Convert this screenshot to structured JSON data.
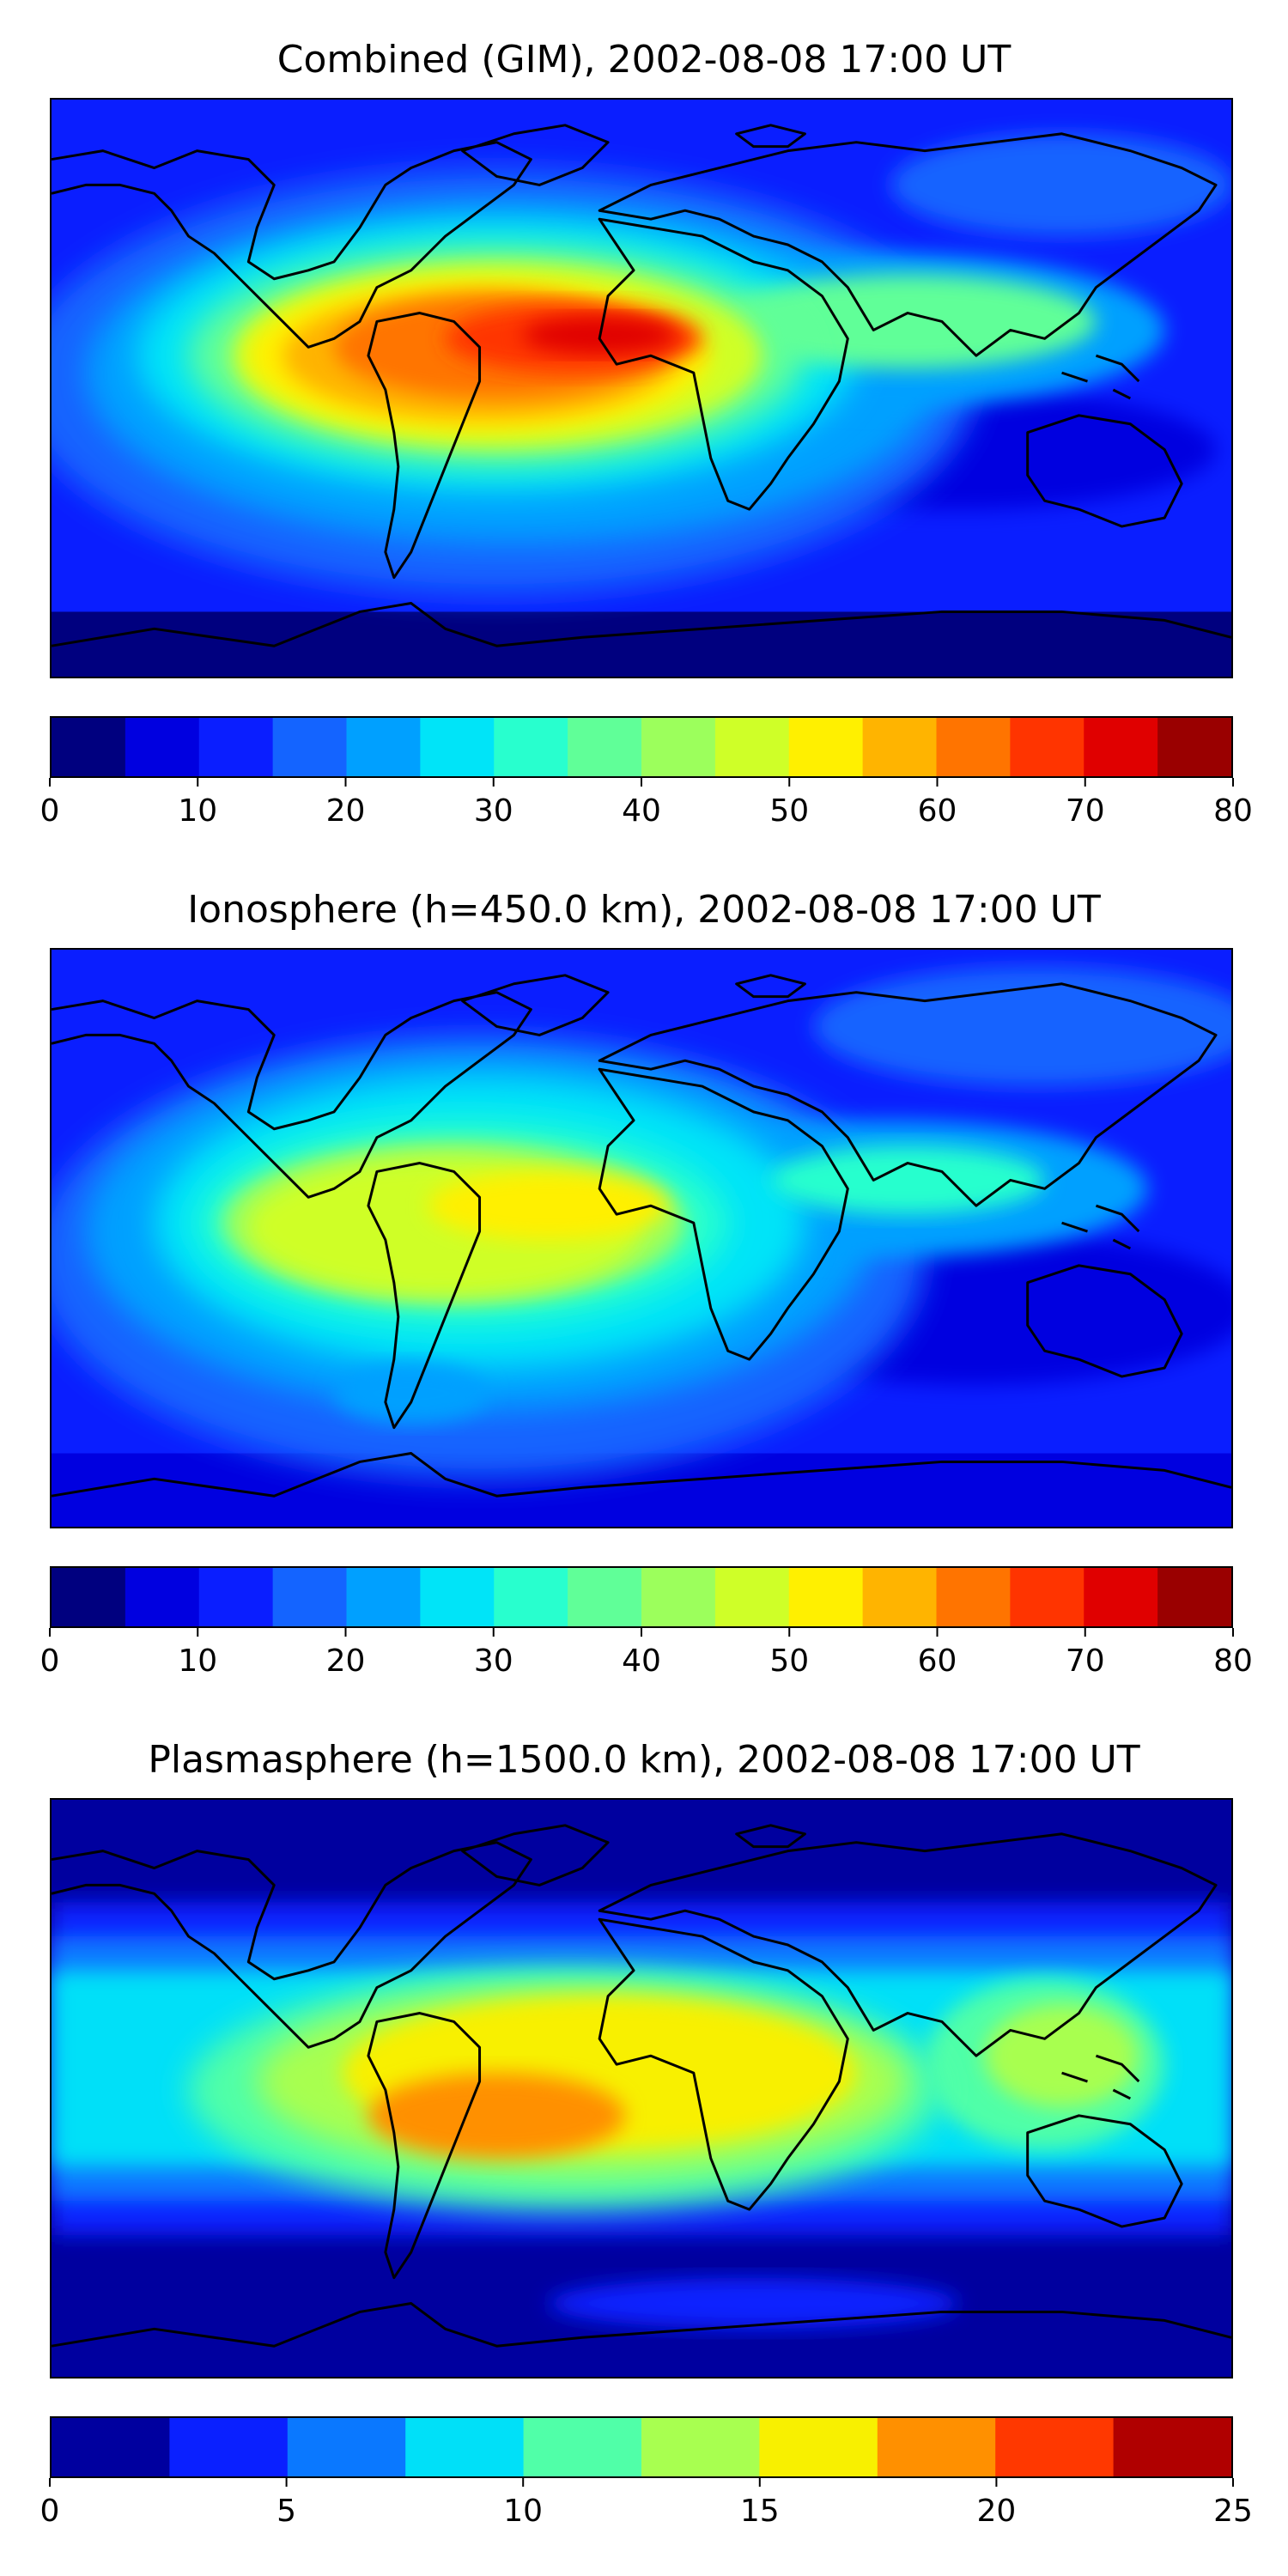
{
  "panels": [
    {
      "title": "Combined (GIM), 2002-08-08 17:00 UT",
      "colorbar": {
        "min": 0,
        "max": 80,
        "step": 5,
        "colors": [
          "#00007f",
          "#0000e0",
          "#0a1eff",
          "#1464ff",
          "#00a0ff",
          "#00e4f8",
          "#28ffce",
          "#60ff98",
          "#9cff5c",
          "#cfff28",
          "#fff000",
          "#ffb400",
          "#ff7400",
          "#ff3400",
          "#e00000",
          "#9a0000"
        ],
        "tick_labels": [
          "0",
          "10",
          "20",
          "30",
          "40",
          "50",
          "60",
          "70",
          "80"
        ]
      }
    },
    {
      "title": "Ionosphere  (h=450.0 km), 2002-08-08 17:00 UT",
      "colorbar": {
        "min": 0,
        "max": 80,
        "step": 5,
        "colors": [
          "#00007f",
          "#0000e0",
          "#0a1eff",
          "#1464ff",
          "#00a0ff",
          "#00e4f8",
          "#28ffce",
          "#60ff98",
          "#9cff5c",
          "#cfff28",
          "#fff000",
          "#ffb400",
          "#ff7400",
          "#ff3400",
          "#e00000",
          "#9a0000"
        ],
        "tick_labels": [
          "0",
          "10",
          "20",
          "30",
          "40",
          "50",
          "60",
          "70",
          "80"
        ]
      }
    },
    {
      "title": "Plasmasphere (h=1500.0 km), 2002-08-08 17:00 UT",
      "colorbar": {
        "min": 0,
        "max": 25,
        "step": 2.5,
        "colors": [
          "#00009f",
          "#0a20ff",
          "#0a78ff",
          "#00e0f8",
          "#50ffa8",
          "#a8ff50",
          "#f8f000",
          "#ff9000",
          "#ff3800",
          "#b00000"
        ],
        "tick_labels": [
          "0",
          "5",
          "10",
          "15",
          "20",
          "25"
        ]
      }
    }
  ]
}
